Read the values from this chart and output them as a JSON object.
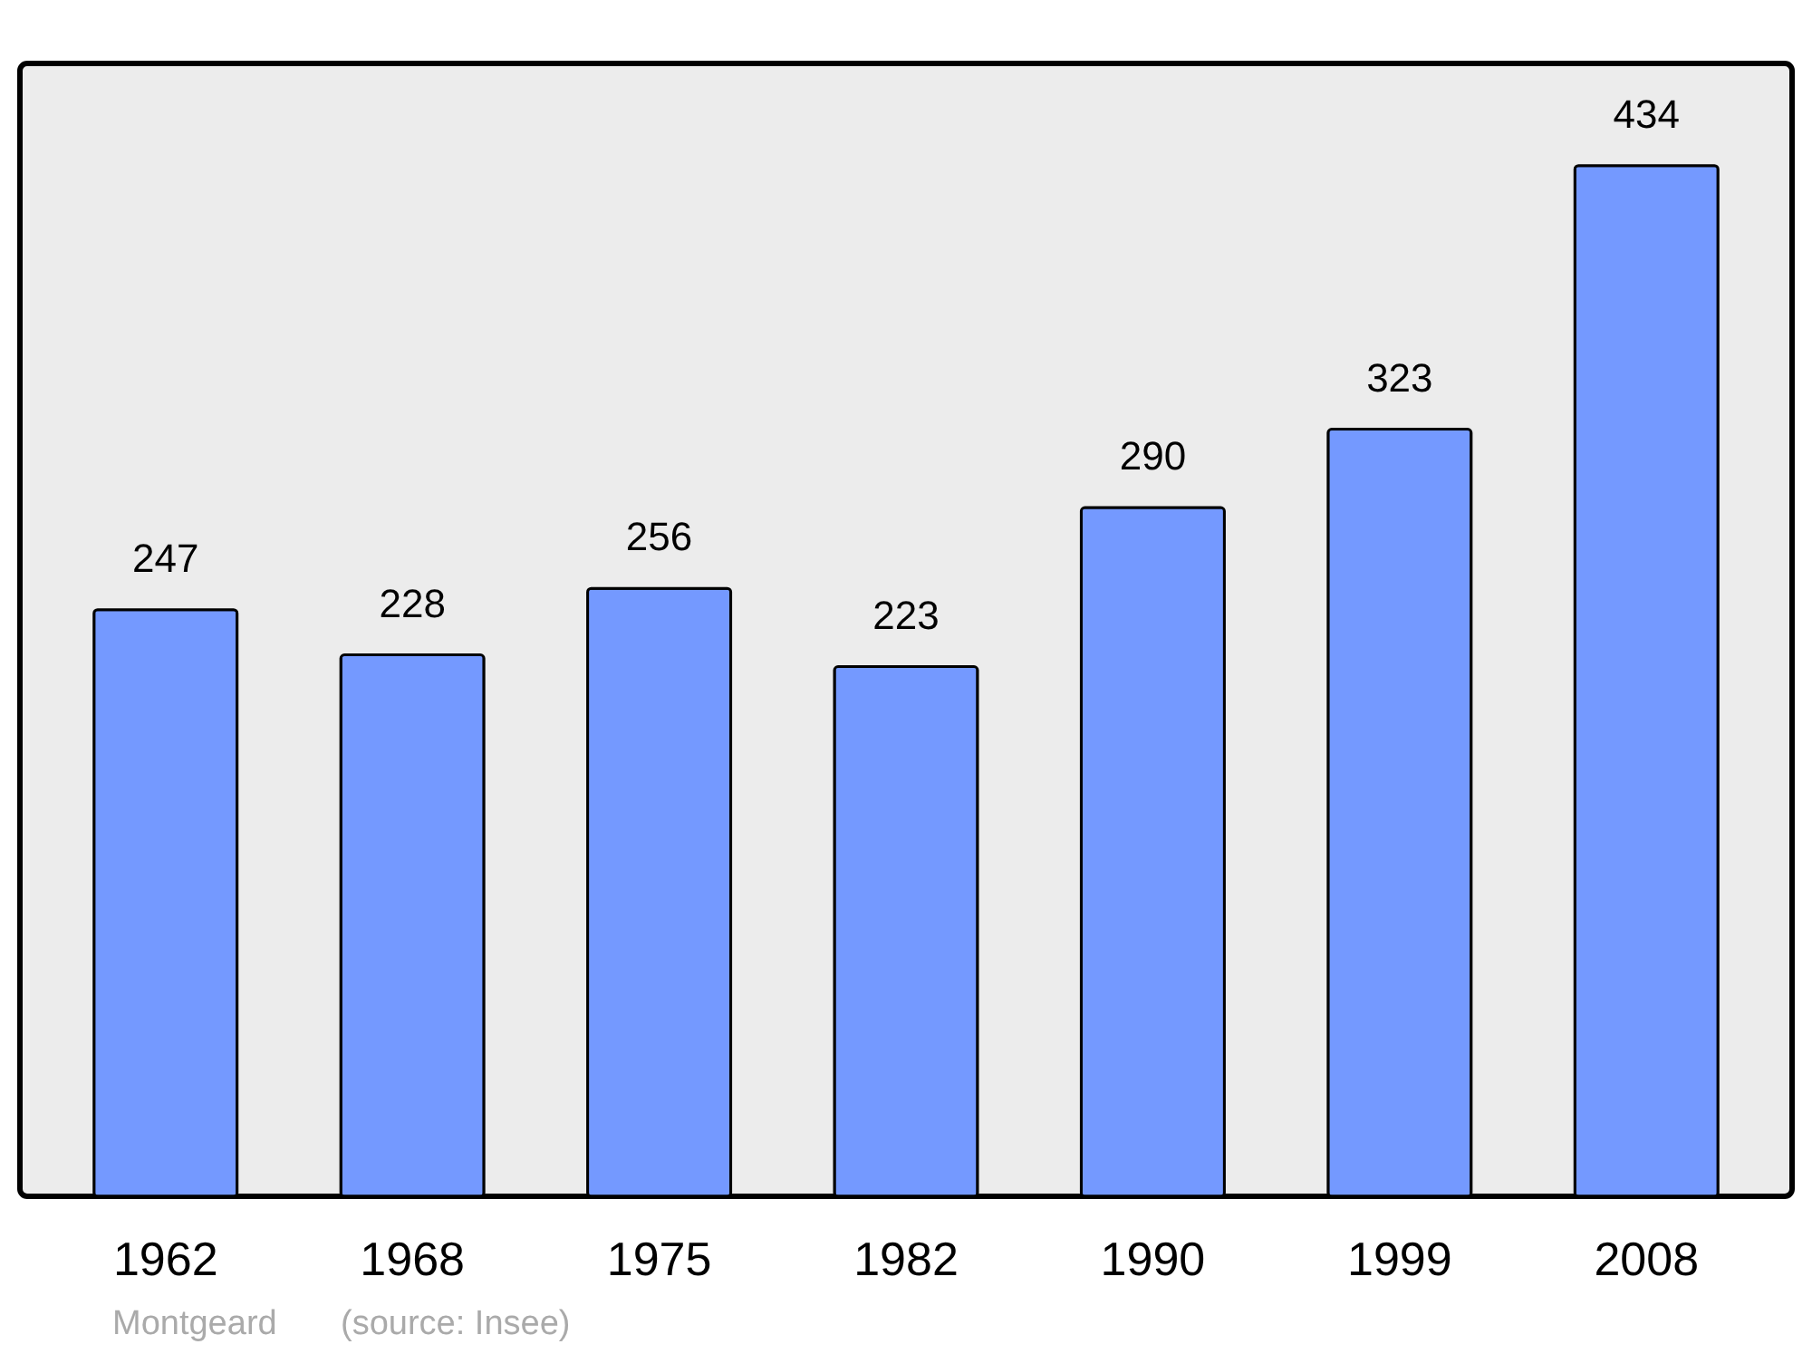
{
  "chart_data": {
    "type": "bar",
    "categories": [
      "1962",
      "1968",
      "1975",
      "1982",
      "1990",
      "1999",
      "2008"
    ],
    "values": [
      247,
      228,
      256,
      223,
      290,
      323,
      434
    ],
    "color": "#7499ff",
    "ylim": [
      0,
      477
    ],
    "data_labels": true,
    "tick_labels": "x",
    "grid": false,
    "annotations": [
      "Montgeard",
      "(source: Insee)"
    ]
  }
}
